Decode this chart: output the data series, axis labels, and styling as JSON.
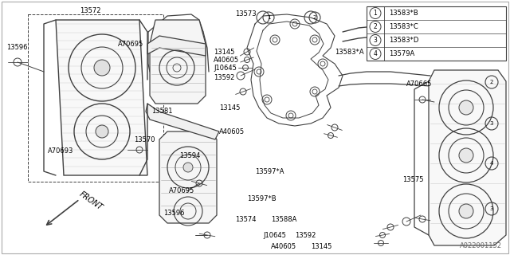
{
  "bg_color": "#ffffff",
  "line_color": "#404040",
  "text_color": "#000000",
  "watermark": "A022001152",
  "legend_items": [
    {
      "num": "1",
      "label": "13583*B"
    },
    {
      "num": "2",
      "label": "13583*C"
    },
    {
      "num": "3",
      "label": "13583*D"
    },
    {
      "num": "4",
      "label": "13579A"
    }
  ],
  "fig_w": 6.4,
  "fig_h": 3.2,
  "dpi": 100
}
